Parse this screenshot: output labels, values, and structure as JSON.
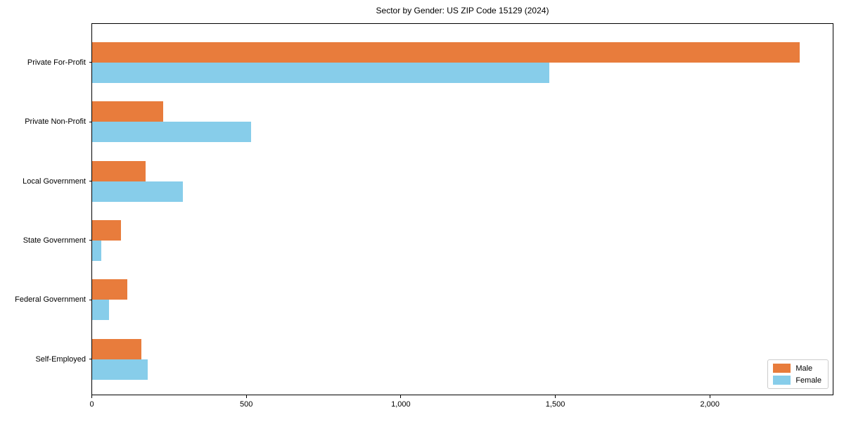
{
  "title": "Sector by Gender: US ZIP Code 15129 (2024)",
  "colors": {
    "male": "#e87c3c",
    "female": "#87cdea",
    "frame": "#000000",
    "background": "#ffffff",
    "legend_border": "#cccccc"
  },
  "chart_data": {
    "type": "bar",
    "orientation": "horizontal",
    "title": "Sector by Gender: US ZIP Code 15129 (2024)",
    "categories": [
      "Private For-Profit",
      "Private Non-Profit",
      "Local Government",
      "State Government",
      "Federal Government",
      "Self-Employed"
    ],
    "series": [
      {
        "name": "Male",
        "color": "#e87c3c",
        "values": [
          2290,
          230,
          175,
          95,
          115,
          160
        ]
      },
      {
        "name": "Female",
        "color": "#87cdea",
        "values": [
          1480,
          515,
          295,
          30,
          55,
          180
        ]
      }
    ],
    "xlabel": "",
    "ylabel": "",
    "xlim": [
      0,
      2400
    ],
    "xticks": [
      0,
      500,
      1000,
      1500,
      2000
    ],
    "xtick_labels": [
      "0",
      "500",
      "1,000",
      "1,500",
      "2,000"
    ],
    "grid": false,
    "legend_position": "lower right"
  },
  "legend": {
    "items": [
      {
        "label": "Male",
        "color": "#e87c3c"
      },
      {
        "label": "Female",
        "color": "#87cdea"
      }
    ]
  }
}
